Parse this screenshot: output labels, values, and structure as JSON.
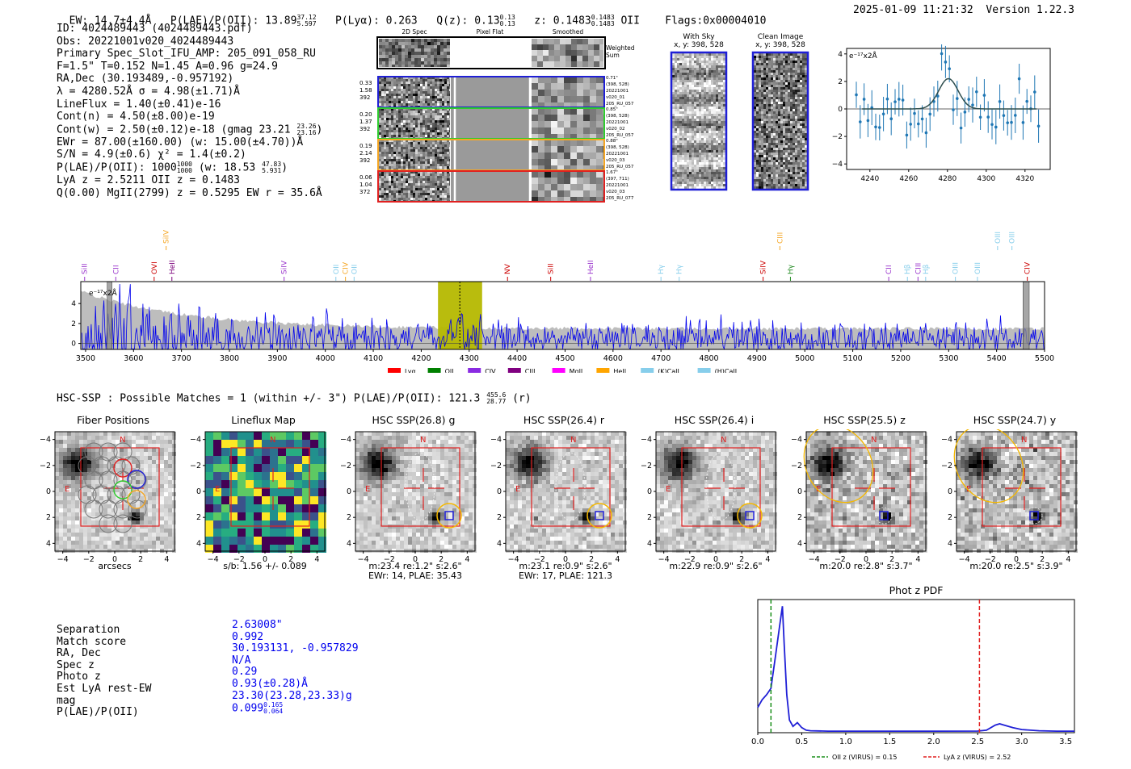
{
  "header": {
    "ew_label": "EW: 14.7±4.4Å",
    "plae_label": "P(LAE)/P(OII): 13.89",
    "plae_hi": "37.12",
    "plae_lo": "5.597",
    "plya_label": "P(Lyα): 0.263",
    "qz_label": "Q(z): 0.13",
    "qz_hi": "0.13",
    "qz_lo": "0.13",
    "z_label": "z: 0.1483",
    "z_hi": "0.1483",
    "z_lo": "0.1483",
    "z_line": "OII",
    "flags": "Flags:0x00004010",
    "datetime": "2025-01-09 11:21:32",
    "version": "Version 1.22.3"
  },
  "info": {
    "id": "ID: 4024489443 (4024489443.pdf)",
    "obs": "Obs: 20221001v020_4024489443",
    "primary": "Primary Spec_Slot_IFU_AMP: 205_091_058_RU",
    "params": "F=1.5\"  T=0.152  N=1.45  A=0.96  g=24.9",
    "radec": "RA,Dec (30.193489,-0.957192)",
    "lambda": "λ = 4280.52Å  σ = 4.98(±1.71)Å",
    "lineflux": "LineFlux = 1.40(±0.41)e-16",
    "cont_n": "Cont(n) = 4.50(±8.00)e-19",
    "cont_w": "Cont(w) = 2.50(±0.12)e-18 (gmag 23.21",
    "cont_w_hi": "23.26",
    "cont_w_lo": "23.16",
    "cont_w_end": ")",
    "ewr": "EWr = 87.00(±160.00) (w: 15.00(±4.70))Å",
    "sn": "S/N = 4.9(±0.6)  χ² = 1.4(±0.2)",
    "plae": "P(LAE)/P(OII): 1000",
    "plae_hi": "1000",
    "plae_lo": "1000",
    "plae_w": "(w: 18.53",
    "plae_w_hi": "47.83",
    "plae_w_lo": "5.931",
    "plae_w_end": ")",
    "lya_oii": "LyA z = 2.5211  OII z = 0.1483",
    "mgii": "Q(0.00) MgII(2799) z = 0.5295  EW r = 35.6Å"
  },
  "fiber_panel": {
    "col_headers": [
      "2D Spec",
      "Pixel Flat",
      "Smoothed"
    ],
    "weighted_sum": "Weighted Sum",
    "rows": [
      {
        "left": [
          "0.33",
          "1.58",
          "392"
        ],
        "right": [
          "0.71\"",
          "(398, 528)",
          "20221001",
          "v020_01",
          "205_RU_057"
        ],
        "color": "#1f1fd6"
      },
      {
        "left": [
          "0.20",
          "1.37",
          "392"
        ],
        "right": [
          "0.85\"",
          "(398, 528)",
          "20221001",
          "v020_02",
          "205_RU_057"
        ],
        "color": "#2ecc2e"
      },
      {
        "left": [
          "0.19",
          "2.14",
          "392"
        ],
        "right": [
          "0.88\"",
          "(398, 528)",
          "20221001",
          "v020_03",
          "205_RU_057"
        ],
        "color": "#f5a623"
      },
      {
        "left": [
          "0.06",
          "1.04",
          "372"
        ],
        "right": [
          "1.67\"",
          "(397, 711)",
          "20221001",
          "v020_03",
          "205_RU_077"
        ],
        "color": "#e02020"
      }
    ]
  },
  "sky_panels": {
    "with_sky_title": "With Sky",
    "with_sky_coords": "x, y: 398, 528",
    "clean_title": "Clean Image",
    "clean_coords": "x, y: 398, 528"
  },
  "zoom_plot": {
    "ylabel": "e⁻¹⁷x2Å",
    "x_ticks": [
      "4240",
      "4260",
      "4280",
      "4300",
      "4320"
    ],
    "y_ticks": [
      "4",
      "2",
      "0",
      "−2",
      "−4"
    ],
    "xlim": [
      4228,
      4333
    ],
    "ylim": [
      -4.4,
      4.4
    ],
    "fit_center": 4280.5,
    "fit_sigma": 4.98,
    "fit_amp": 2.2
  },
  "chart_data": {
    "type": "line",
    "title": "",
    "xlabel": "",
    "ylabel": "e⁻¹⁷x2Å",
    "xlim": [
      3490,
      5500
    ],
    "ylim": [
      -0.6,
      6.2
    ],
    "x_ticks": [
      "3500",
      "3600",
      "3700",
      "3800",
      "3900",
      "4000",
      "4100",
      "4200",
      "4300",
      "4400",
      "4500",
      "4600",
      "4700",
      "4800",
      "4900",
      "5000",
      "5100",
      "5200",
      "5300",
      "5400",
      "5500"
    ],
    "y_ticks": [
      "4",
      "2",
      "0"
    ],
    "highlight_range": [
      4235,
      4327
    ],
    "line_marker": 4280.5,
    "spectral_lines": [
      {
        "name": "SiII",
        "x": 3498,
        "color": "#9933cc",
        "tier": 0
      },
      {
        "name": "CII",
        "x": 3563,
        "color": "#9933cc",
        "tier": 0
      },
      {
        "name": "OVI",
        "x": 3643,
        "color": "#cc0000",
        "tier": 0
      },
      {
        "name": "SiIV",
        "x": 3668,
        "color": "#f5a623",
        "tier": 1
      },
      {
        "name": "HeII",
        "x": 3680,
        "color": "#7b007b",
        "tier": 0
      },
      {
        "name": "SiIV",
        "x": 3914,
        "color": "#9933cc",
        "tier": 0
      },
      {
        "name": "OII",
        "x": 4022,
        "color": "#87ceeb",
        "tier": 0
      },
      {
        "name": "CIV",
        "x": 4042,
        "color": "#f5a623",
        "tier": 0
      },
      {
        "name": "OII",
        "x": 4060,
        "color": "#87ceeb",
        "tier": 0
      },
      {
        "name": "NV",
        "x": 4380,
        "color": "#cc0000",
        "tier": 0
      },
      {
        "name": "SiII",
        "x": 4470,
        "color": "#cc0000",
        "tier": 0
      },
      {
        "name": "HeII",
        "x": 4553,
        "color": "#9933cc",
        "tier": 0
      },
      {
        "name": "Hγ",
        "x": 4700,
        "color": "#87ceeb",
        "tier": 0
      },
      {
        "name": "Hγ",
        "x": 4738,
        "color": "#87ceeb",
        "tier": 0
      },
      {
        "name": "SiIV",
        "x": 4913,
        "color": "#cc0000",
        "tier": 0
      },
      {
        "name": "CIII",
        "x": 4948,
        "color": "#f5a623",
        "tier": 1
      },
      {
        "name": "Hγ",
        "x": 4970,
        "color": "#228b22",
        "tier": 0
      },
      {
        "name": "CII",
        "x": 5175,
        "color": "#9933cc",
        "tier": 0
      },
      {
        "name": "Hβ",
        "x": 5214,
        "color": "#87ceeb",
        "tier": 0
      },
      {
        "name": "CIII",
        "x": 5236,
        "color": "#9933cc",
        "tier": 0
      },
      {
        "name": "Hβ",
        "x": 5252,
        "color": "#87ceeb",
        "tier": 0
      },
      {
        "name": "OIII",
        "x": 5314,
        "color": "#87ceeb",
        "tier": 0
      },
      {
        "name": "OIII",
        "x": 5360,
        "color": "#87ceeb",
        "tier": 0
      },
      {
        "name": "OIII",
        "x": 5402,
        "color": "#87ceeb",
        "tier": 1
      },
      {
        "name": "OIII",
        "x": 5432,
        "color": "#87ceeb",
        "tier": 1
      },
      {
        "name": "CIV",
        "x": 5464,
        "color": "#cc0000",
        "tier": 0
      }
    ],
    "legend": [
      {
        "name": "Lyα",
        "color": "#ff0000"
      },
      {
        "name": "OII",
        "color": "#008000"
      },
      {
        "name": "CIV",
        "color": "#8a2be2"
      },
      {
        "name": "CIII",
        "color": "#800080"
      },
      {
        "name": "MgII",
        "color": "#ff00ff"
      },
      {
        "name": "HeII",
        "color": "#ffa500"
      },
      {
        "name": "(K)CaII",
        "color": "#87ceeb"
      },
      {
        "name": "(H)CaII",
        "color": "#87ceeb"
      }
    ]
  },
  "hsc": {
    "title": "HSC-SSP : Possible Matches = 1 (within +/- 3\")  P(LAE)/P(OII): 121.3",
    "plae_hi": "455.6",
    "plae_lo": "28.77",
    "band": "(r)",
    "cutouts": [
      {
        "title": "Fiber Positions",
        "cap1": "arcsecs",
        "cap2": ""
      },
      {
        "title": "Lineflux Map",
        "cap1": "s/b: 1.56 +/- 0.089",
        "cap2": ""
      },
      {
        "title": "HSC SSP(26.8) g",
        "cap1": "m:23.4  re:1.2\"  s:2.6\"",
        "cap2": "EWr: 14, PLAE: 35.43"
      },
      {
        "title": "HSC SSP(26.4) r",
        "cap1": "m:23.1  re:0.9\"  s:2.6\"",
        "cap2": "EWr: 17, PLAE: 121.3"
      },
      {
        "title": "HSC SSP(26.4) i",
        "cap1": "m:22.9  re:0.9\"  s:2.6\"",
        "cap2": ""
      },
      {
        "title": "HSC SSP(25.5) z",
        "cap1": "m:20.0  re:2.8\"  s:3.7\"",
        "cap2": ""
      },
      {
        "title": "HSC SSP(24.7) y",
        "cap1": "m:20.0  re:2.5\"  s:3.9\"",
        "cap2": ""
      }
    ],
    "axis_ticks_x": [
      "−4",
      "−2",
      "0",
      "2",
      "4"
    ],
    "axis_ticks_y": [
      "4",
      "2",
      "0",
      "−2",
      "−4"
    ],
    "compass_n": "N",
    "compass_e": "E"
  },
  "match": {
    "labels": [
      "Separation",
      "Match score",
      "RA, Dec",
      "Spec z",
      "Photo z",
      "Est LyA rest-EW",
      "mag",
      "P(LAE)/P(OII)"
    ],
    "separation": "2.63008\"",
    "match_score": "0.992",
    "radec": "30.193131, -0.957829",
    "spec_z": "N/A",
    "photo_z": "0.29",
    "est_lya": "0.93(±0.28)Å",
    "mag": "23.30(23.28,23.33)g",
    "plae": "0.099",
    "plae_hi": "0.165",
    "plae_lo": "0.064"
  },
  "photz": {
    "title": "Phot z PDF",
    "x_ticks": [
      "0.0",
      "0.5",
      "1.0",
      "1.5",
      "2.0",
      "2.5",
      "3.0",
      "3.5"
    ],
    "xlim": [
      0,
      3.6
    ],
    "oii_z": 0.15,
    "lya_z": 2.52,
    "legend_oii": "OII z (VIRUS) = 0.15",
    "legend_lya": "LyA z (VIRUS) = 2.52",
    "pdf_x": [
      0.0,
      0.05,
      0.1,
      0.15,
      0.2,
      0.25,
      0.28,
      0.3,
      0.33,
      0.36,
      0.4,
      0.45,
      0.5,
      0.55,
      0.6,
      0.8,
      1.0,
      1.5,
      2.0,
      2.5,
      2.6,
      2.7,
      2.75,
      2.8,
      2.9,
      3.0,
      3.2,
      3.4,
      3.6
    ],
    "pdf_y": [
      0.2,
      0.26,
      0.3,
      0.35,
      0.6,
      0.85,
      1.0,
      0.7,
      0.3,
      0.1,
      0.05,
      0.08,
      0.04,
      0.02,
      0.015,
      0.012,
      0.012,
      0.012,
      0.012,
      0.013,
      0.02,
      0.06,
      0.07,
      0.06,
      0.04,
      0.025,
      0.015,
      0.012,
      0.012
    ]
  }
}
